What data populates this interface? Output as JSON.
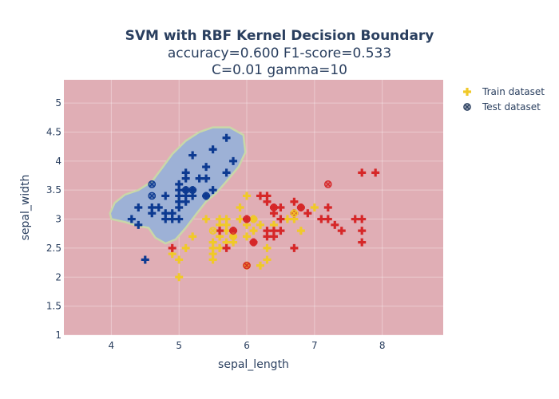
{
  "chart_data": {
    "type": "scatter",
    "title": "SVM with RBF Kernel Decision Boundary",
    "subtitle_lines": [
      "accuracy=0.600 F1-score=0.533",
      "C=0.01 gamma=10"
    ],
    "xlabel": "sepal_length",
    "ylabel": "sepal_width",
    "xlim": [
      3.3,
      8.9
    ],
    "ylim": [
      1,
      5.4
    ],
    "xticks": [
      4,
      5,
      6,
      7,
      8
    ],
    "yticks": [
      1,
      1.5,
      2,
      2.5,
      3,
      3.5,
      4,
      4.5,
      5
    ],
    "grid": true,
    "legend_position": "top-right",
    "decision_regions": {
      "background_class_color": "#e0aeb5",
      "blue_region_color": "#9db1d6",
      "blue_region_outline_color": "#c9d7a8",
      "blue_region_boundary": [
        [
          4.55,
          2.85
        ],
        [
          4.4,
          2.88
        ],
        [
          4.2,
          2.95
        ],
        [
          4.0,
          3.0
        ],
        [
          3.98,
          3.1
        ],
        [
          4.05,
          3.28
        ],
        [
          4.2,
          3.42
        ],
        [
          4.4,
          3.5
        ],
        [
          4.6,
          3.65
        ],
        [
          4.75,
          3.88
        ],
        [
          4.9,
          4.12
        ],
        [
          5.1,
          4.35
        ],
        [
          5.3,
          4.5
        ],
        [
          5.5,
          4.58
        ],
        [
          5.75,
          4.58
        ],
        [
          5.95,
          4.45
        ],
        [
          5.98,
          4.15
        ],
        [
          5.88,
          3.9
        ],
        [
          5.7,
          3.65
        ],
        [
          5.55,
          3.45
        ],
        [
          5.4,
          3.3
        ],
        [
          5.25,
          3.08
        ],
        [
          5.1,
          2.85
        ],
        [
          4.95,
          2.65
        ],
        [
          4.8,
          2.58
        ],
        [
          4.65,
          2.68
        ]
      ]
    },
    "series": [
      {
        "name": "Train dataset",
        "marker": "cross",
        "class_points": {
          "setosa": {
            "color": "#0d3a91",
            "points": [
              [
                4.3,
                3.0
              ],
              [
                4.4,
                2.9
              ],
              [
                4.4,
                3.2
              ],
              [
                4.5,
                2.3
              ],
              [
                4.6,
                3.1
              ],
              [
                4.6,
                3.2
              ],
              [
                4.7,
                3.2
              ],
              [
                4.8,
                3.0
              ],
              [
                4.8,
                3.1
              ],
              [
                4.8,
                3.4
              ],
              [
                4.9,
                3.0
              ],
              [
                4.9,
                3.1
              ],
              [
                5.0,
                3.0
              ],
              [
                5.0,
                3.2
              ],
              [
                5.0,
                3.3
              ],
              [
                5.0,
                3.4
              ],
              [
                5.0,
                3.5
              ],
              [
                5.0,
                3.6
              ],
              [
                5.1,
                3.3
              ],
              [
                5.1,
                3.4
              ],
              [
                5.1,
                3.5
              ],
              [
                5.1,
                3.7
              ],
              [
                5.1,
                3.8
              ],
              [
                5.2,
                3.4
              ],
              [
                5.2,
                3.5
              ],
              [
                5.2,
                4.1
              ],
              [
                5.3,
                3.7
              ],
              [
                5.4,
                3.4
              ],
              [
                5.4,
                3.7
              ],
              [
                5.4,
                3.9
              ],
              [
                5.5,
                3.5
              ],
              [
                5.5,
                4.2
              ],
              [
                5.7,
                3.8
              ],
              [
                5.7,
                4.4
              ],
              [
                5.8,
                4.0
              ]
            ]
          },
          "versicolor": {
            "color": "#f0c929",
            "points": [
              [
                4.9,
                2.4
              ],
              [
                5.0,
                2.0
              ],
              [
                5.0,
                2.3
              ],
              [
                5.1,
                2.5
              ],
              [
                5.2,
                2.7
              ],
              [
                5.4,
                3.0
              ],
              [
                5.5,
                2.3
              ],
              [
                5.5,
                2.4
              ],
              [
                5.5,
                2.5
              ],
              [
                5.5,
                2.6
              ],
              [
                5.6,
                2.5
              ],
              [
                5.6,
                2.7
              ],
              [
                5.6,
                2.9
              ],
              [
                5.6,
                3.0
              ],
              [
                5.7,
                2.6
              ],
              [
                5.7,
                2.8
              ],
              [
                5.7,
                2.9
              ],
              [
                5.7,
                3.0
              ],
              [
                5.8,
                2.6
              ],
              [
                5.8,
                2.7
              ],
              [
                5.9,
                3.0
              ],
              [
                5.9,
                3.2
              ],
              [
                6.0,
                2.2
              ],
              [
                6.0,
                2.7
              ],
              [
                6.0,
                2.9
              ],
              [
                6.0,
                3.4
              ],
              [
                6.1,
                2.8
              ],
              [
                6.1,
                3.0
              ],
              [
                6.2,
                2.2
              ],
              [
                6.2,
                2.9
              ],
              [
                6.3,
                2.3
              ],
              [
                6.3,
                2.5
              ],
              [
                6.4,
                2.9
              ],
              [
                6.6,
                3.0
              ],
              [
                6.7,
                3.0
              ],
              [
                6.7,
                3.1
              ],
              [
                6.8,
                2.8
              ],
              [
                7.0,
                3.2
              ]
            ]
          },
          "virginica": {
            "color": "#d62728",
            "points": [
              [
                4.9,
                2.5
              ],
              [
                5.6,
                2.8
              ],
              [
                5.7,
                2.5
              ],
              [
                5.8,
                2.8
              ],
              [
                6.0,
                3.0
              ],
              [
                6.1,
                2.6
              ],
              [
                6.2,
                3.4
              ],
              [
                6.3,
                2.7
              ],
              [
                6.3,
                2.8
              ],
              [
                6.3,
                3.3
              ],
              [
                6.3,
                3.4
              ],
              [
                6.4,
                2.7
              ],
              [
                6.4,
                2.8
              ],
              [
                6.4,
                3.1
              ],
              [
                6.4,
                3.2
              ],
              [
                6.5,
                2.8
              ],
              [
                6.5,
                3.0
              ],
              [
                6.5,
                3.2
              ],
              [
                6.7,
                2.5
              ],
              [
                6.7,
                3.1
              ],
              [
                6.7,
                3.3
              ],
              [
                6.8,
                3.2
              ],
              [
                6.9,
                3.1
              ],
              [
                7.1,
                3.0
              ],
              [
                7.2,
                3.0
              ],
              [
                7.2,
                3.2
              ],
              [
                7.3,
                2.9
              ],
              [
                7.4,
                2.8
              ],
              [
                7.6,
                3.0
              ],
              [
                7.7,
                2.6
              ],
              [
                7.7,
                2.8
              ],
              [
                7.7,
                3.0
              ],
              [
                7.7,
                3.8
              ],
              [
                7.9,
                3.8
              ]
            ]
          }
        }
      },
      {
        "name": "Test dataset",
        "marker": "x-circle",
        "class_points": {
          "setosa": {
            "color": "#0d3a91",
            "points": [
              [
                4.6,
                3.4
              ],
              [
                4.6,
                3.6
              ],
              [
                5.1,
                3.5
              ],
              [
                5.2,
                3.5
              ],
              [
                5.4,
                3.4
              ]
            ]
          },
          "versicolor": {
            "color": "#f0c929",
            "points": [
              [
                5.5,
                2.8
              ],
              [
                5.8,
                2.7
              ],
              [
                6.0,
                2.2
              ],
              [
                6.1,
                3.0
              ],
              [
                6.7,
                3.1
              ]
            ]
          },
          "virginica": {
            "color": "#d62728",
            "points": [
              [
                5.8,
                2.8
              ],
              [
                6.0,
                2.2
              ],
              [
                6.0,
                3.0
              ],
              [
                6.1,
                2.6
              ],
              [
                6.4,
                3.2
              ],
              [
                6.8,
                3.2
              ],
              [
                7.2,
                3.6
              ]
            ]
          }
        }
      }
    ],
    "legend": [
      {
        "label": "Train dataset",
        "symbol": "cross",
        "color": "#f0c929"
      },
      {
        "label": "Test dataset",
        "symbol": "x-circle",
        "color": "#2a3f5f"
      }
    ]
  }
}
